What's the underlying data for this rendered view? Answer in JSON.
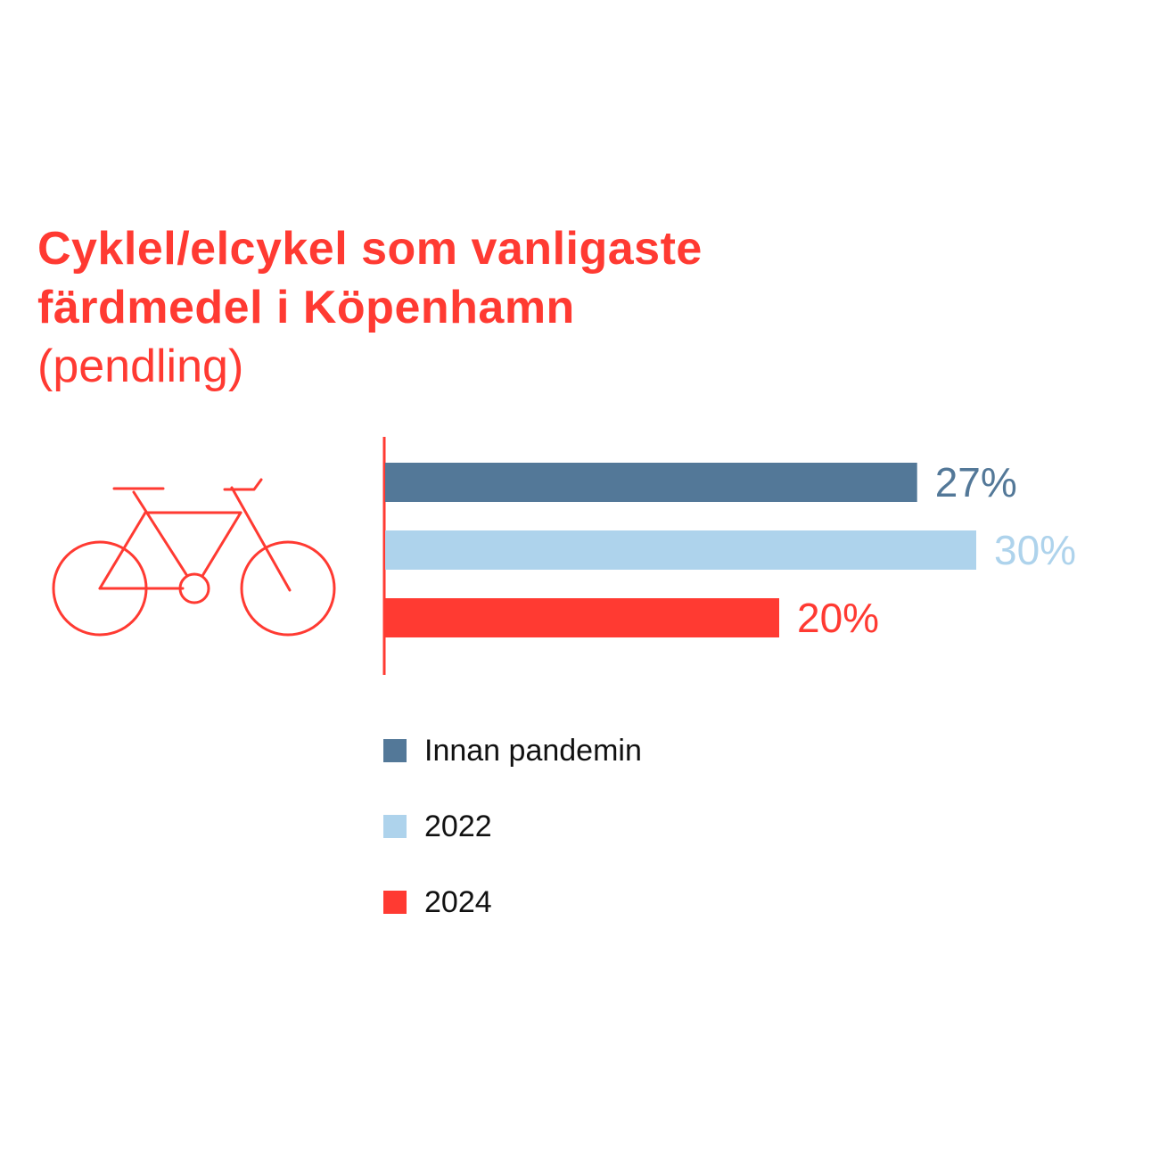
{
  "title": {
    "line1": "Cyklel/elcykel som vanligaste",
    "line2": "färdmedel i Köpenhamn",
    "line3": "(pendling)"
  },
  "icon": "bicycle-icon",
  "colors": {
    "accent": "#ff3a32",
    "series_pre": "#537898",
    "series_2022": "#aed3ec",
    "series_2024": "#ff3a32"
  },
  "chart_data": {
    "type": "bar",
    "orientation": "horizontal",
    "categories": [
      "Innan pandemin",
      "2022",
      "2024"
    ],
    "values": [
      27,
      30,
      20
    ],
    "value_labels": [
      "27%",
      "30%",
      "20%"
    ],
    "unit": "%",
    "xlim": [
      0,
      30
    ],
    "grid": false,
    "legend": {
      "placement": "bottom",
      "entries": [
        "Innan pandemin",
        "2022",
        "2024"
      ]
    }
  }
}
